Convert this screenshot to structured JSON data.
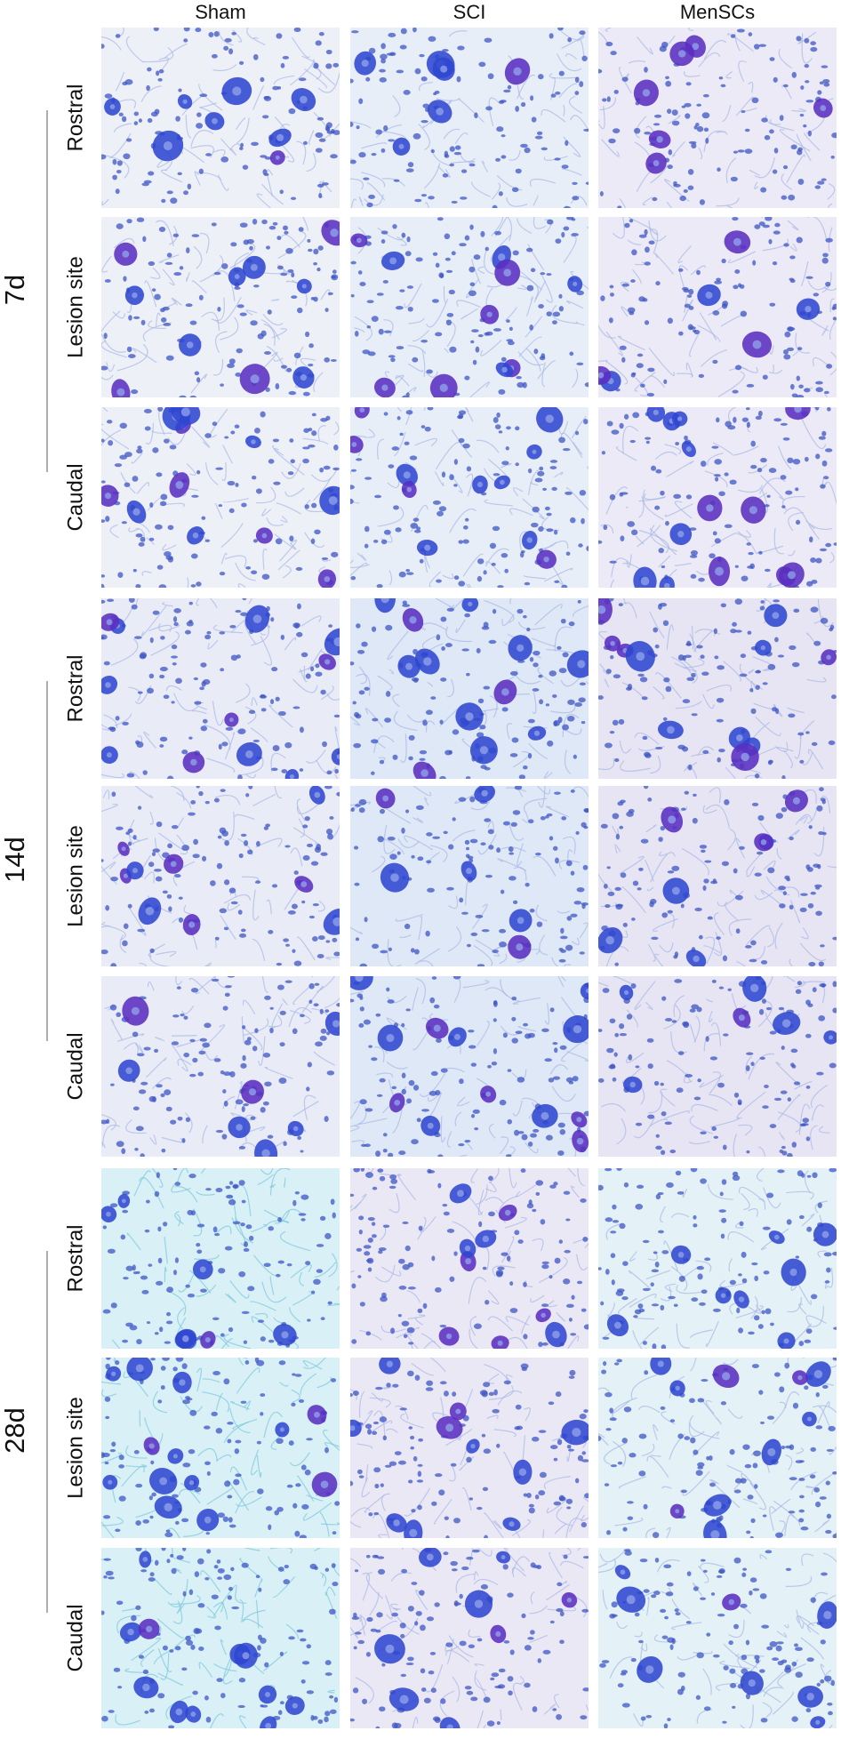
{
  "columns": [
    "Sham",
    "SCI",
    "MenSCs"
  ],
  "groups": [
    {
      "label": "7d",
      "rows": [
        "Rostral",
        "Lesion site",
        "Caudal"
      ]
    },
    {
      "label": "14d",
      "rows": [
        "Rostral",
        "Lesion site",
        "Caudal"
      ]
    },
    {
      "label": "28d",
      "rows": [
        "Rostral",
        "Lesion site",
        "Caudal"
      ]
    }
  ]
}
